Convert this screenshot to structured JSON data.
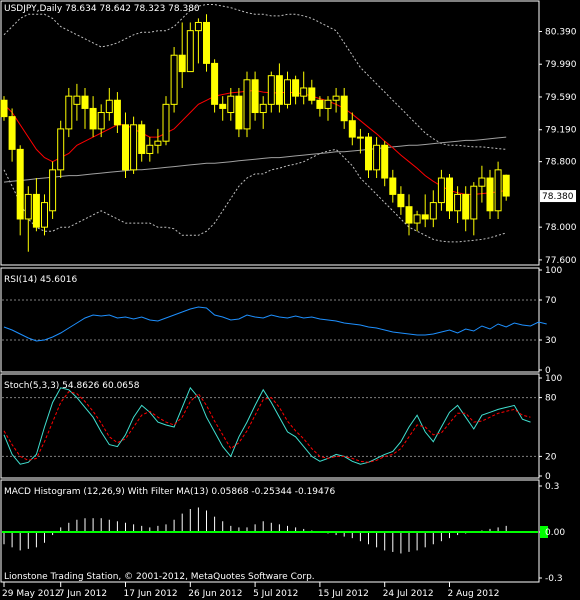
{
  "chart_data": [
    {
      "type": "candlestick",
      "title": "USDJPY,Daily  78.634 78.642 78.323 78.380",
      "last_price_label": "78.380",
      "y_ticks": [
        "80.390",
        "79.990",
        "79.590",
        "79.190",
        "78.800",
        "78.000",
        "77.600"
      ],
      "y_tick_values": [
        80.39,
        79.99,
        79.59,
        79.19,
        78.8,
        78.0,
        77.6
      ],
      "ylim": [
        77.55,
        80.75
      ],
      "candles": [
        {
          "o": 79.55,
          "h": 79.6,
          "l": 79.3,
          "c": 79.35
        },
        {
          "o": 79.35,
          "h": 79.45,
          "l": 78.8,
          "c": 78.95
        },
        {
          "o": 78.95,
          "h": 79.0,
          "l": 77.9,
          "c": 78.1
        },
        {
          "o": 78.1,
          "h": 78.5,
          "l": 77.7,
          "c": 78.4
        },
        {
          "o": 78.4,
          "h": 78.6,
          "l": 77.95,
          "c": 78.0
        },
        {
          "o": 78.0,
          "h": 78.4,
          "l": 77.9,
          "c": 78.3
        },
        {
          "o": 78.2,
          "h": 78.8,
          "l": 78.1,
          "c": 78.7
        },
        {
          "o": 78.7,
          "h": 79.3,
          "l": 78.6,
          "c": 79.2
        },
        {
          "o": 79.2,
          "h": 79.7,
          "l": 79.1,
          "c": 79.6
        },
        {
          "o": 79.5,
          "h": 79.75,
          "l": 79.3,
          "c": 79.6
        },
        {
          "o": 79.6,
          "h": 79.7,
          "l": 79.2,
          "c": 79.45
        },
        {
          "o": 79.45,
          "h": 79.6,
          "l": 79.1,
          "c": 79.2
        },
        {
          "o": 79.2,
          "h": 79.5,
          "l": 79.1,
          "c": 79.4
        },
        {
          "o": 79.4,
          "h": 79.7,
          "l": 79.3,
          "c": 79.55
        },
        {
          "o": 79.55,
          "h": 79.65,
          "l": 79.15,
          "c": 79.25
        },
        {
          "o": 79.25,
          "h": 79.4,
          "l": 78.6,
          "c": 78.7
        },
        {
          "o": 78.7,
          "h": 79.35,
          "l": 78.65,
          "c": 79.25
        },
        {
          "o": 79.25,
          "h": 79.3,
          "l": 78.8,
          "c": 78.9
        },
        {
          "o": 78.9,
          "h": 79.1,
          "l": 78.8,
          "c": 79.0
        },
        {
          "o": 79.0,
          "h": 79.2,
          "l": 78.9,
          "c": 79.05
        },
        {
          "o": 79.05,
          "h": 79.6,
          "l": 79.0,
          "c": 79.5
        },
        {
          "o": 79.5,
          "h": 80.2,
          "l": 79.4,
          "c": 80.1
        },
        {
          "o": 80.1,
          "h": 80.5,
          "l": 79.7,
          "c": 79.9
        },
        {
          "o": 79.9,
          "h": 80.5,
          "l": 79.9,
          "c": 80.4
        },
        {
          "o": 80.4,
          "h": 80.55,
          "l": 80.0,
          "c": 80.5
        },
        {
          "o": 80.5,
          "h": 80.6,
          "l": 79.9,
          "c": 80.0
        },
        {
          "o": 80.0,
          "h": 80.05,
          "l": 79.4,
          "c": 79.5
        },
        {
          "o": 79.5,
          "h": 79.6,
          "l": 79.3,
          "c": 79.45
        },
        {
          "o": 79.4,
          "h": 79.7,
          "l": 79.3,
          "c": 79.6
        },
        {
          "o": 79.6,
          "h": 79.7,
          "l": 79.1,
          "c": 79.2
        },
        {
          "o": 79.2,
          "h": 79.9,
          "l": 79.1,
          "c": 79.8
        },
        {
          "o": 79.8,
          "h": 79.9,
          "l": 79.3,
          "c": 79.4
        },
        {
          "o": 79.4,
          "h": 79.6,
          "l": 79.2,
          "c": 79.5
        },
        {
          "o": 79.5,
          "h": 79.9,
          "l": 79.4,
          "c": 79.85
        },
        {
          "o": 79.85,
          "h": 80.0,
          "l": 79.4,
          "c": 79.5
        },
        {
          "o": 79.5,
          "h": 79.9,
          "l": 79.45,
          "c": 79.8
        },
        {
          "o": 79.8,
          "h": 79.85,
          "l": 79.5,
          "c": 79.6
        },
        {
          "o": 79.6,
          "h": 79.9,
          "l": 79.5,
          "c": 79.7
        },
        {
          "o": 79.7,
          "h": 79.8,
          "l": 79.5,
          "c": 79.55
        },
        {
          "o": 79.55,
          "h": 79.6,
          "l": 79.35,
          "c": 79.45
        },
        {
          "o": 79.45,
          "h": 79.6,
          "l": 79.3,
          "c": 79.55
        },
        {
          "o": 79.55,
          "h": 79.7,
          "l": 79.4,
          "c": 79.6
        },
        {
          "o": 79.6,
          "h": 79.7,
          "l": 79.2,
          "c": 79.3
        },
        {
          "o": 79.3,
          "h": 79.4,
          "l": 79.0,
          "c": 79.1
        },
        {
          "o": 79.1,
          "h": 79.2,
          "l": 78.9,
          "c": 79.1
        },
        {
          "o": 79.1,
          "h": 79.15,
          "l": 78.6,
          "c": 78.7
        },
        {
          "o": 78.7,
          "h": 79.1,
          "l": 78.6,
          "c": 79.0
        },
        {
          "o": 79.0,
          "h": 79.05,
          "l": 78.5,
          "c": 78.6
        },
        {
          "o": 78.6,
          "h": 78.7,
          "l": 78.3,
          "c": 78.4
        },
        {
          "o": 78.4,
          "h": 78.5,
          "l": 78.15,
          "c": 78.25
        },
        {
          "o": 78.25,
          "h": 78.4,
          "l": 77.9,
          "c": 78.05
        },
        {
          "o": 78.05,
          "h": 78.2,
          "l": 77.95,
          "c": 78.15
        },
        {
          "o": 78.15,
          "h": 78.4,
          "l": 78.0,
          "c": 78.1
        },
        {
          "o": 78.1,
          "h": 78.45,
          "l": 78.0,
          "c": 78.3
        },
        {
          "o": 78.3,
          "h": 78.7,
          "l": 78.2,
          "c": 78.6
        },
        {
          "o": 78.6,
          "h": 78.65,
          "l": 78.1,
          "c": 78.2
        },
        {
          "o": 78.2,
          "h": 78.5,
          "l": 78.05,
          "c": 78.4
        },
        {
          "o": 78.4,
          "h": 78.5,
          "l": 77.95,
          "c": 78.1
        },
        {
          "o": 78.1,
          "h": 78.55,
          "l": 77.9,
          "c": 78.5
        },
        {
          "o": 78.5,
          "h": 78.75,
          "l": 78.3,
          "c": 78.6
        },
        {
          "o": 78.6,
          "h": 78.7,
          "l": 78.1,
          "c": 78.2
        },
        {
          "o": 78.2,
          "h": 78.8,
          "l": 78.1,
          "c": 78.7
        },
        {
          "o": 78.634,
          "h": 78.642,
          "l": 78.323,
          "c": 78.38
        }
      ],
      "ma_red": [
        79.5,
        79.4,
        79.25,
        79.1,
        78.95,
        78.85,
        78.8,
        78.85,
        78.9,
        79.0,
        79.05,
        79.1,
        79.15,
        79.2,
        79.25,
        79.25,
        79.2,
        79.15,
        79.1,
        79.1,
        79.15,
        79.2,
        79.3,
        79.4,
        79.5,
        79.55,
        79.6,
        79.62,
        79.64,
        79.65,
        79.66,
        79.67,
        79.65,
        79.64,
        79.64,
        79.65,
        79.64,
        79.63,
        79.6,
        79.57,
        79.54,
        79.5,
        79.45,
        79.38,
        79.3,
        79.22,
        79.14,
        79.05,
        78.97,
        78.88,
        78.8,
        78.72,
        78.63,
        78.56,
        78.5,
        78.45,
        78.42,
        78.4,
        78.4,
        78.41,
        78.42,
        78.43,
        78.45
      ],
      "ma_gray": [
        78.55,
        78.56,
        78.57,
        78.58,
        78.59,
        78.6,
        78.61,
        78.62,
        78.63,
        78.63,
        78.64,
        78.65,
        78.66,
        78.67,
        78.68,
        78.69,
        78.7,
        78.7,
        78.71,
        78.72,
        78.73,
        78.74,
        78.75,
        78.76,
        78.77,
        78.78,
        78.78,
        78.79,
        78.8,
        78.81,
        78.82,
        78.83,
        78.84,
        78.85,
        78.85,
        78.86,
        78.87,
        78.88,
        78.89,
        78.9,
        78.91,
        78.92,
        78.92,
        78.93,
        78.94,
        78.95,
        78.96,
        78.97,
        78.98,
        78.99,
        79.0,
        79.0,
        79.01,
        79.02,
        79.03,
        79.04,
        79.05,
        79.06,
        79.06,
        79.07,
        79.08,
        79.09,
        79.1
      ],
      "band_upper": [
        80.35,
        80.45,
        80.55,
        80.6,
        80.6,
        80.6,
        80.55,
        80.45,
        80.4,
        80.35,
        80.3,
        80.25,
        80.2,
        80.22,
        80.25,
        80.3,
        80.35,
        80.38,
        80.38,
        80.4,
        80.4,
        80.45,
        80.55,
        80.65,
        80.7,
        80.72,
        80.72,
        80.7,
        80.68,
        80.65,
        80.62,
        80.6,
        80.6,
        80.58,
        80.58,
        80.6,
        80.6,
        80.58,
        80.55,
        80.5,
        80.45,
        80.4,
        80.25,
        80.1,
        79.95,
        79.85,
        79.75,
        79.65,
        79.55,
        79.45,
        79.35,
        79.25,
        79.15,
        79.08,
        79.02,
        79.0,
        79.0,
        78.99,
        78.98,
        78.98,
        78.97,
        78.96,
        78.95
      ],
      "band_lower": [
        78.7,
        78.5,
        78.3,
        78.1,
        78.0,
        77.95,
        77.95,
        78.0,
        78.0,
        78.05,
        78.1,
        78.15,
        78.2,
        78.15,
        78.1,
        78.05,
        78.05,
        78.05,
        78.05,
        78.0,
        78.0,
        77.98,
        77.9,
        77.9,
        77.9,
        77.95,
        78.05,
        78.2,
        78.35,
        78.5,
        78.6,
        78.65,
        78.65,
        78.7,
        78.72,
        78.75,
        78.77,
        78.8,
        78.85,
        78.9,
        78.93,
        78.95,
        78.85,
        78.75,
        78.6,
        78.5,
        78.4,
        78.3,
        78.2,
        78.1,
        78.0,
        77.95,
        77.9,
        77.85,
        77.83,
        77.82,
        77.82,
        77.83,
        77.84,
        77.85,
        77.87,
        77.9,
        77.93
      ]
    },
    {
      "type": "line",
      "title": "RSI(14) 45.6016",
      "y_ticks": [
        "100",
        "70",
        "30",
        "0"
      ],
      "y_tick_values": [
        100,
        70,
        30,
        0
      ],
      "levels": [
        70,
        30
      ],
      "ylim": [
        0,
        100
      ],
      "series": [
        {
          "values": [
            43,
            40,
            36,
            32,
            29,
            30,
            33,
            37,
            42,
            47,
            52,
            55,
            54,
            55,
            52,
            53,
            51,
            53,
            50,
            49,
            52,
            55,
            58,
            61,
            63,
            62,
            55,
            53,
            50,
            51,
            55,
            53,
            52,
            55,
            53,
            52,
            54,
            52,
            53,
            51,
            50,
            49,
            47,
            46,
            45,
            43,
            42,
            40,
            38,
            37,
            36,
            35,
            35,
            36,
            38,
            40,
            37,
            41,
            39,
            44,
            41,
            46,
            43,
            47,
            45,
            44,
            48,
            46
          ]
        }
      ]
    },
    {
      "type": "line",
      "title": "Stoch(5,3,3) 54.8626 60.0658",
      "y_ticks": [
        "100",
        "80",
        "20",
        "0"
      ],
      "y_tick_values": [
        100,
        80,
        20,
        0
      ],
      "levels": [
        80,
        20
      ],
      "ylim": [
        0,
        100
      ],
      "series": [
        {
          "values": [
            42,
            22,
            12,
            14,
            22,
            50,
            75,
            90,
            88,
            80,
            70,
            60,
            45,
            32,
            30,
            42,
            60,
            72,
            65,
            55,
            52,
            50,
            70,
            90,
            80,
            60,
            45,
            30,
            20,
            40,
            55,
            72,
            88,
            75,
            60,
            45,
            40,
            30,
            20,
            15,
            18,
            22,
            20,
            15,
            12,
            14,
            18,
            22,
            25,
            35,
            50,
            62,
            45,
            35,
            50,
            65,
            72,
            60,
            48,
            62,
            65,
            68,
            70,
            72,
            58,
            55
          ]
        },
        {
          "values": [
            46,
            32,
            20,
            16,
            18,
            35,
            55,
            75,
            86,
            84,
            76,
            66,
            54,
            40,
            34,
            38,
            50,
            62,
            66,
            60,
            55,
            52,
            60,
            76,
            84,
            72,
            56,
            42,
            28,
            34,
            46,
            62,
            78,
            80,
            70,
            56,
            46,
            38,
            28,
            20,
            18,
            20,
            20,
            18,
            15,
            14,
            16,
            20,
            22,
            28,
            40,
            52,
            50,
            42,
            44,
            54,
            64,
            64,
            55,
            56,
            60,
            64,
            66,
            68,
            62,
            60
          ]
        }
      ]
    },
    {
      "type": "bar",
      "title": "MACD Histogram (12,26,9) With Filter MA(13) 0.05868 -0.25344 -0.19476",
      "y_ticks": [
        "0.3",
        "0.00",
        "-0.3"
      ],
      "y_tick_values": [
        0.3,
        0,
        -0.3
      ],
      "ylim": [
        -0.3,
        0.3
      ],
      "values": [
        -0.08,
        -0.1,
        -0.12,
        -0.11,
        -0.1,
        -0.07,
        -0.02,
        0.03,
        0.06,
        0.08,
        0.09,
        0.09,
        0.09,
        0.08,
        0.07,
        0.06,
        0.05,
        0.04,
        0.03,
        0.04,
        0.05,
        0.08,
        0.12,
        0.15,
        0.16,
        0.14,
        0.1,
        0.07,
        0.04,
        0.03,
        0.03,
        0.05,
        0.07,
        0.06,
        0.05,
        0.04,
        0.03,
        0.02,
        0.01,
        0.0,
        -0.01,
        -0.02,
        -0.03,
        -0.04,
        -0.06,
        -0.08,
        -0.1,
        -0.12,
        -0.13,
        -0.14,
        -0.13,
        -0.12,
        -0.1,
        -0.08,
        -0.06,
        -0.04,
        -0.02,
        -0.01,
        0.0,
        0.01,
        0.02,
        0.03,
        0.04
      ],
      "zero_line_color": "#00ff00",
      "last_label": "0.00"
    }
  ],
  "x_axis_labels": [
    "29 May 2012",
    "7 Jun 2012",
    "17 Jun 2012",
    "26 Jun 2012",
    "5 Jul 2012",
    "15 Jul 2012",
    "24 Jul 2012",
    "2 Aug 2012"
  ],
  "x_axis_label_bar_index": [
    0,
    7,
    15,
    23,
    31,
    39,
    47,
    55
  ],
  "footer": "Lionstone Trading Station, © 2001-2012, MetaQuotes Software Corp.",
  "colors": {
    "background": "#000000",
    "frame": "#ffffff",
    "candle": "#ffff00",
    "ma_red": "#ff0000",
    "ma_gray": "#a0a0a0",
    "band": "#c0c0c0",
    "rsi": "#1e90ff",
    "stoch_main": "#40e0d0",
    "stoch_signal": "#ff0000",
    "macd_bar": "#ffffff",
    "macd_zero": "#00ff00",
    "level_line": "#808080",
    "price_box": "#ffffff"
  }
}
